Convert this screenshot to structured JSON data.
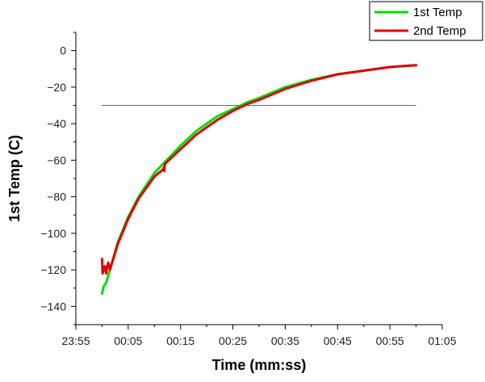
{
  "chart_data": {
    "type": "line",
    "title": "",
    "xlabel": "Time (mm:ss)",
    "ylabel": "1st Temp (C)",
    "x_ticks": [
      "23:55",
      "00:05",
      "00:15",
      "00:25",
      "00:35",
      "00:45",
      "00:55",
      "01:05"
    ],
    "x_tick_seconds": [
      -5,
      5,
      15,
      25,
      35,
      45,
      55,
      65
    ],
    "xlim_seconds": [
      -5,
      65
    ],
    "y_ticks": [
      0,
      -20,
      -40,
      -60,
      -80,
      -100,
      -120,
      -140
    ],
    "ylim": [
      -150,
      10
    ],
    "grid": false,
    "legend_position": "top-right",
    "reference_line": {
      "y": -30,
      "x_from": 0,
      "x_to": 60,
      "color": "#666666"
    },
    "series": [
      {
        "name": "1st Temp",
        "color": "#00e000",
        "x": [
          0,
          0.3,
          0.8,
          1.5,
          3,
          5,
          7,
          10,
          12,
          15,
          18,
          20,
          22,
          25,
          28,
          30,
          35,
          40,
          45,
          50,
          55,
          60
        ],
        "y": [
          -133,
          -129,
          -127,
          -120,
          -105,
          -91,
          -80,
          -67,
          -61,
          -52,
          -44,
          -40,
          -36,
          -32,
          -28,
          -26,
          -20,
          -16,
          -13,
          -11,
          -9,
          -8
        ]
      },
      {
        "name": "2nd Temp",
        "color": "#e00000",
        "x": [
          0,
          0.1,
          0.3,
          0.5,
          0.8,
          1,
          1.2,
          1.5,
          3,
          5,
          7,
          10,
          11.7,
          11.8,
          11.9,
          12,
          15,
          18,
          20,
          22,
          25,
          28,
          30,
          35,
          40,
          45,
          50,
          55,
          60
        ],
        "y": [
          -114,
          -122,
          -120,
          -118,
          -122,
          -118,
          -116,
          -120,
          -106,
          -92,
          -81,
          -69,
          -65,
          -64,
          -66,
          -62,
          -54,
          -46,
          -42,
          -38,
          -33,
          -29,
          -27,
          -21,
          -16.5,
          -13,
          -11,
          -9,
          -8
        ]
      }
    ]
  }
}
